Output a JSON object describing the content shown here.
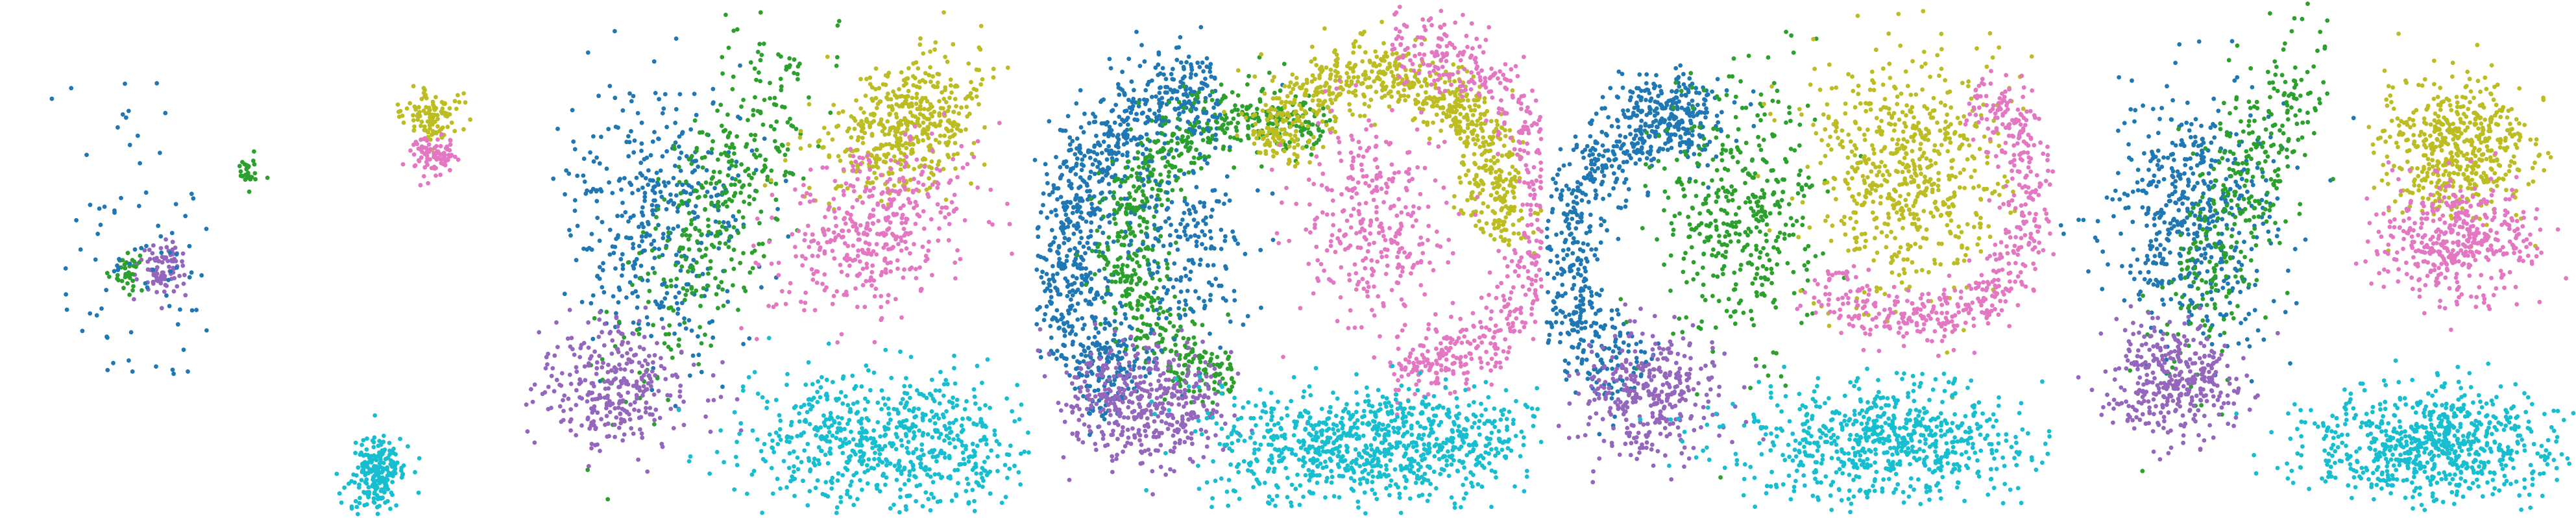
{
  "chart_data": {
    "type": "scatter",
    "title": "",
    "xlabel": "",
    "ylabel": "",
    "grid": false,
    "legend": "none",
    "axes": "hidden",
    "cluster_colors": {
      "blue": "#1f77b4",
      "green": "#2ca02c",
      "purple": "#9467bd",
      "olive": "#bcbd22",
      "pink": "#e377c2",
      "cyan": "#17becf"
    },
    "panels": [
      {
        "name": "panel-1-sparse-embedding",
        "xlim": [
          0,
          100
        ],
        "ylim": [
          0,
          100
        ],
        "clusters": [
          {
            "color": "purple",
            "shape": "blob",
            "n": 90,
            "cx": 31,
            "cy": 52,
            "rx": 4.5,
            "ry": 6
          },
          {
            "color": "green",
            "shape": "blob",
            "n": 40,
            "cx": 24,
            "cy": 53,
            "rx": 3,
            "ry": 4
          },
          {
            "color": "green",
            "shape": "blob",
            "n": 28,
            "cx": 48,
            "cy": 33,
            "rx": 2.2,
            "ry": 3
          },
          {
            "color": "blue",
            "shape": "scatter",
            "n": 70,
            "cx": 26,
            "cy": 55,
            "rx": 14,
            "ry": 18
          },
          {
            "color": "blue",
            "shape": "scatter",
            "n": 14,
            "cx": 20,
            "cy": 22,
            "rx": 12,
            "ry": 10
          },
          {
            "color": "olive",
            "shape": "blob",
            "n": 110,
            "cx": 84,
            "cy": 22,
            "rx": 5.5,
            "ry": 5
          },
          {
            "color": "pink",
            "shape": "blob",
            "n": 90,
            "cx": 84,
            "cy": 30,
            "rx": 5,
            "ry": 4
          },
          {
            "color": "cyan",
            "shape": "blob",
            "n": 220,
            "cx": 73,
            "cy": 92,
            "rx": 5.5,
            "ry": 7
          }
        ]
      },
      {
        "name": "panel-2-spatial",
        "xlim": [
          0,
          100
        ],
        "ylim": [
          0,
          100
        ],
        "clusters": [
          {
            "color": "blue",
            "shape": "blob",
            "n": 420,
            "cx": 27,
            "cy": 42,
            "rx": 18,
            "ry": 26
          },
          {
            "color": "green",
            "shape": "band",
            "n": 380,
            "cx": 40,
            "cy": 38,
            "rx": 12,
            "ry": 38,
            "angle": 25
          },
          {
            "color": "purple",
            "shape": "blob",
            "n": 320,
            "cx": 18,
            "cy": 75,
            "rx": 16,
            "ry": 12
          },
          {
            "color": "olive",
            "shape": "blob",
            "n": 480,
            "cx": 75,
            "cy": 24,
            "rx": 18,
            "ry": 12,
            "angle": -35
          },
          {
            "color": "pink",
            "shape": "blob",
            "n": 420,
            "cx": 70,
            "cy": 44,
            "rx": 20,
            "ry": 14,
            "angle": -35
          },
          {
            "color": "cyan",
            "shape": "blob",
            "n": 700,
            "cx": 72,
            "cy": 86,
            "rx": 28,
            "ry": 14
          }
        ]
      },
      {
        "name": "panel-3-spatial",
        "xlim": [
          0,
          100
        ],
        "ylim": [
          0,
          100
        ],
        "clusters": [
          {
            "color": "blue",
            "shape": "arc",
            "n": 900,
            "cx": 42,
            "cy": 50,
            "r": 36,
            "w": 9,
            "a0": 130,
            "a1": 260
          },
          {
            "color": "green",
            "shape": "arc",
            "n": 700,
            "cx": 44,
            "cy": 48,
            "r": 26,
            "w": 7,
            "a0": 100,
            "a1": 300
          },
          {
            "color": "blue",
            "shape": "blob",
            "n": 220,
            "cx": 30,
            "cy": 45,
            "rx": 12,
            "ry": 22
          },
          {
            "color": "purple",
            "shape": "blob",
            "n": 420,
            "cx": 22,
            "cy": 78,
            "rx": 16,
            "ry": 12
          },
          {
            "color": "olive",
            "shape": "arc",
            "n": 800,
            "cx": 68,
            "cy": 38,
            "r": 24,
            "w": 7,
            "a0": 200,
            "a1": 380
          },
          {
            "color": "pink",
            "shape": "arc",
            "n": 650,
            "cx": 70,
            "cy": 40,
            "r": 32,
            "w": 7,
            "a0": -90,
            "a1": 90
          },
          {
            "color": "pink",
            "shape": "blob",
            "n": 320,
            "cx": 66,
            "cy": 42,
            "rx": 14,
            "ry": 22
          },
          {
            "color": "cyan",
            "shape": "blob",
            "n": 900,
            "cx": 68,
            "cy": 86,
            "rx": 32,
            "ry": 11
          }
        ]
      },
      {
        "name": "panel-4-spatial",
        "xlim": [
          0,
          100
        ],
        "ylim": [
          0,
          100
        ],
        "clusters": [
          {
            "color": "blue",
            "shape": "arc",
            "n": 620,
            "cx": 32,
            "cy": 50,
            "r": 28,
            "w": 8,
            "a0": 120,
            "a1": 270
          },
          {
            "color": "blue",
            "shape": "blob",
            "n": 160,
            "cx": 24,
            "cy": 20,
            "rx": 12,
            "ry": 8
          },
          {
            "color": "green",
            "shape": "blob",
            "n": 420,
            "cx": 38,
            "cy": 40,
            "rx": 16,
            "ry": 28
          },
          {
            "color": "purple",
            "shape": "blob",
            "n": 340,
            "cx": 20,
            "cy": 76,
            "rx": 15,
            "ry": 12
          },
          {
            "color": "olive",
            "shape": "blob",
            "n": 620,
            "cx": 71,
            "cy": 32,
            "rx": 20,
            "ry": 24
          },
          {
            "color": "pink",
            "shape": "arc",
            "n": 520,
            "cx": 72,
            "cy": 38,
            "r": 24,
            "w": 6,
            "a0": -60,
            "a1": 140
          },
          {
            "color": "cyan",
            "shape": "blob",
            "n": 700,
            "cx": 66,
            "cy": 86,
            "rx": 30,
            "ry": 12
          }
        ]
      },
      {
        "name": "panel-5-spatial",
        "xlim": [
          0,
          100
        ],
        "ylim": [
          0,
          100
        ],
        "clusters": [
          {
            "color": "blue",
            "shape": "blob",
            "n": 520,
            "cx": 26,
            "cy": 42,
            "rx": 16,
            "ry": 24
          },
          {
            "color": "green",
            "shape": "band",
            "n": 360,
            "cx": 36,
            "cy": 36,
            "rx": 10,
            "ry": 36,
            "angle": 20
          },
          {
            "color": "purple",
            "shape": "blob",
            "n": 360,
            "cx": 22,
            "cy": 74,
            "rx": 12,
            "ry": 12
          },
          {
            "color": "olive",
            "shape": "blob",
            "n": 520,
            "cx": 78,
            "cy": 28,
            "rx": 14,
            "ry": 13
          },
          {
            "color": "pink",
            "shape": "blob",
            "n": 420,
            "cx": 77,
            "cy": 46,
            "rx": 15,
            "ry": 11
          },
          {
            "color": "cyan",
            "shape": "blob",
            "n": 720,
            "cx": 72,
            "cy": 86,
            "rx": 24,
            "ry": 11
          }
        ]
      }
    ]
  }
}
